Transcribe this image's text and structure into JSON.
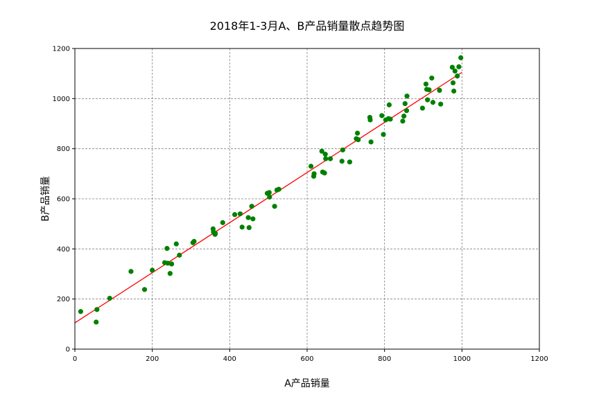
{
  "chart_data": {
    "type": "scatter",
    "title": "2018年1-3月A、B产品销量散点趋势图",
    "xlabel": "A产品销量",
    "ylabel": "B产品销量",
    "xlim": [
      0,
      1200
    ],
    "ylim": [
      0,
      1200
    ],
    "xticks": [
      "0",
      "200",
      "400",
      "600",
      "800",
      "1000",
      "1200"
    ],
    "yticks": [
      "0",
      "200",
      "400",
      "600",
      "800",
      "1000",
      "1200"
    ],
    "grid": true,
    "point_color": "#008000",
    "trend_color": "#ff0000",
    "trend_line": {
      "x": [
        0,
        1000
      ],
      "y": [
        105,
        1105
      ]
    },
    "points": [
      [
        15,
        150
      ],
      [
        55,
        108
      ],
      [
        57,
        158
      ],
      [
        90,
        203
      ],
      [
        145,
        310
      ],
      [
        180,
        238
      ],
      [
        200,
        315
      ],
      [
        232,
        345
      ],
      [
        238,
        402
      ],
      [
        240,
        343
      ],
      [
        246,
        302
      ],
      [
        250,
        340
      ],
      [
        262,
        420
      ],
      [
        270,
        375
      ],
      [
        305,
        425
      ],
      [
        308,
        430
      ],
      [
        357,
        480
      ],
      [
        358,
        468
      ],
      [
        362,
        458
      ],
      [
        363,
        462
      ],
      [
        382,
        505
      ],
      [
        413,
        537
      ],
      [
        427,
        540
      ],
      [
        432,
        487
      ],
      [
        448,
        525
      ],
      [
        450,
        485
      ],
      [
        457,
        570
      ],
      [
        460,
        520
      ],
      [
        497,
        622
      ],
      [
        502,
        625
      ],
      [
        503,
        607
      ],
      [
        516,
        570
      ],
      [
        522,
        635
      ],
      [
        527,
        638
      ],
      [
        610,
        730
      ],
      [
        617,
        690
      ],
      [
        618,
        700
      ],
      [
        638,
        790
      ],
      [
        640,
        707
      ],
      [
        645,
        703
      ],
      [
        647,
        778
      ],
      [
        648,
        760
      ],
      [
        660,
        760
      ],
      [
        690,
        750
      ],
      [
        692,
        795
      ],
      [
        710,
        747
      ],
      [
        727,
        840
      ],
      [
        730,
        862
      ],
      [
        732,
        836
      ],
      [
        762,
        925
      ],
      [
        763,
        915
      ],
      [
        765,
        827
      ],
      [
        793,
        932
      ],
      [
        797,
        857
      ],
      [
        803,
        915
      ],
      [
        810,
        920
      ],
      [
        812,
        975
      ],
      [
        815,
        918
      ],
      [
        847,
        910
      ],
      [
        850,
        930
      ],
      [
        853,
        980
      ],
      [
        857,
        952
      ],
      [
        858,
        1010
      ],
      [
        898,
        962
      ],
      [
        907,
        1058
      ],
      [
        909,
        1037
      ],
      [
        911,
        995
      ],
      [
        915,
        1035
      ],
      [
        922,
        1082
      ],
      [
        925,
        985
      ],
      [
        942,
        1033
      ],
      [
        945,
        978
      ],
      [
        975,
        1125
      ],
      [
        977,
        1063
      ],
      [
        979,
        1030
      ],
      [
        982,
        1110
      ],
      [
        988,
        1090
      ],
      [
        992,
        1127
      ],
      [
        997,
        1163
      ]
    ]
  }
}
